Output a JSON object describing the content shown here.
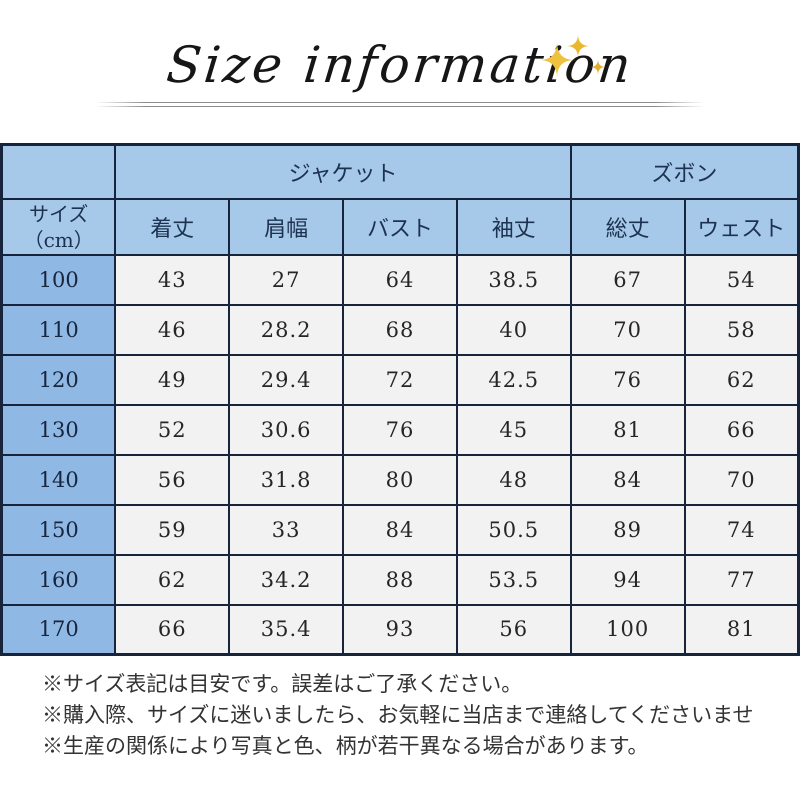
{
  "title": "Size information",
  "table": {
    "size_header_line1": "サイズ",
    "size_header_line2": "（cm）",
    "groups": [
      {
        "label": "ジャケット",
        "colspan": 4
      },
      {
        "label": "ズボン",
        "colspan": 2
      }
    ],
    "columns": [
      "着丈",
      "肩幅",
      "バスト",
      "袖丈",
      "総丈",
      "ウェスト"
    ],
    "rows": [
      {
        "size": "100",
        "values": [
          "43",
          "27",
          "64",
          "38.5",
          "67",
          "54"
        ]
      },
      {
        "size": "110",
        "values": [
          "46",
          "28.2",
          "68",
          "40",
          "70",
          "58"
        ]
      },
      {
        "size": "120",
        "values": [
          "49",
          "29.4",
          "72",
          "42.5",
          "76",
          "62"
        ]
      },
      {
        "size": "130",
        "values": [
          "52",
          "30.6",
          "76",
          "45",
          "81",
          "66"
        ]
      },
      {
        "size": "140",
        "values": [
          "56",
          "31.8",
          "80",
          "48",
          "84",
          "70"
        ]
      },
      {
        "size": "150",
        "values": [
          "59",
          "33",
          "84",
          "50.5",
          "89",
          "74"
        ]
      },
      {
        "size": "160",
        "values": [
          "62",
          "34.2",
          "88",
          "53.5",
          "94",
          "77"
        ]
      },
      {
        "size": "170",
        "values": [
          "66",
          "35.4",
          "93",
          "56",
          "100",
          "81"
        ]
      }
    ]
  },
  "notes": [
    "※サイズ表記は目安です。誤差はご了承ください。",
    "※購入際、サイズに迷いましたら、お気軽に当店まで連絡してくださいませ",
    "※生産の関係により写真と色、柄が若干異なる場合があります。"
  ],
  "colors": {
    "header_blue": "#a6c9ea",
    "size_column_blue": "#90b8e4",
    "cell_background": "#f2f2f2",
    "table_border": "#17243c",
    "header_text": "#1d3150",
    "sparkle_gold": "#e8b73a",
    "rule_gray": "#8c8c8c"
  }
}
